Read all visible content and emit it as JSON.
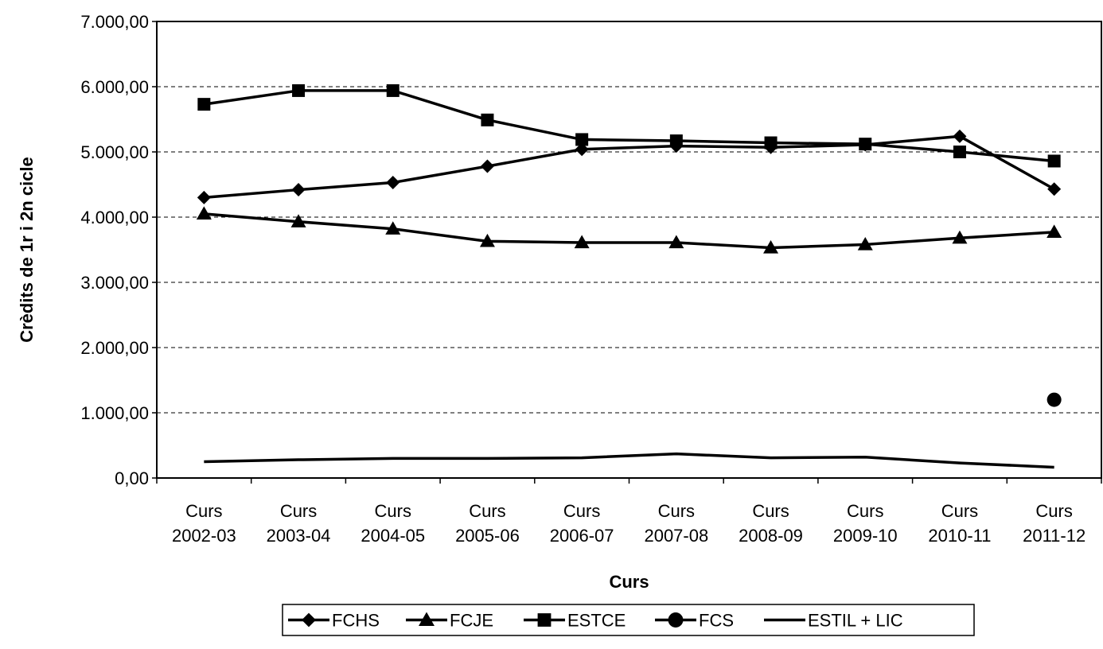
{
  "chart_data": {
    "type": "line",
    "title": "",
    "xlabel": "Curs",
    "ylabel": "Crèdits de 1r i 2n cicle",
    "ylim": [
      0,
      7000
    ],
    "yticks": [
      0,
      1000,
      2000,
      3000,
      4000,
      5000,
      6000,
      7000
    ],
    "ytick_labels": [
      "0,00",
      "1.000,00",
      "2.000,00",
      "3.000,00",
      "4.000,00",
      "5.000,00",
      "6.000,00",
      "7.000,00"
    ],
    "categories": [
      [
        "Curs",
        "2002-03"
      ],
      [
        "Curs",
        "2003-04"
      ],
      [
        "Curs",
        "2004-05"
      ],
      [
        "Curs",
        "2005-06"
      ],
      [
        "Curs",
        "2006-07"
      ],
      [
        "Curs",
        "2007-08"
      ],
      [
        "Curs",
        "2008-09"
      ],
      [
        "Curs",
        "2009-10"
      ],
      [
        "Curs",
        "2010-11"
      ],
      [
        "Curs",
        "2011-12"
      ]
    ],
    "grid": "horizontal dashed",
    "legend_position": "bottom",
    "series": [
      {
        "name": "FCHS",
        "marker": "diamond",
        "values": [
          4300,
          4420,
          4530,
          4780,
          5040,
          5090,
          5070,
          5110,
          5240,
          4430
        ]
      },
      {
        "name": "FCJE",
        "marker": "triangle",
        "values": [
          4050,
          3930,
          3820,
          3630,
          3610,
          3610,
          3530,
          3580,
          3680,
          3770
        ]
      },
      {
        "name": "ESTCE",
        "marker": "square",
        "values": [
          5730,
          5940,
          5940,
          5490,
          5190,
          5170,
          5140,
          5120,
          5000,
          4860
        ]
      },
      {
        "name": "FCS",
        "marker": "circle",
        "values": [
          null,
          null,
          null,
          null,
          null,
          null,
          null,
          null,
          null,
          1200
        ]
      },
      {
        "name": "ESTIL + LIC",
        "marker": "none",
        "values": [
          250,
          280,
          300,
          300,
          310,
          370,
          310,
          320,
          230,
          165
        ]
      }
    ]
  }
}
